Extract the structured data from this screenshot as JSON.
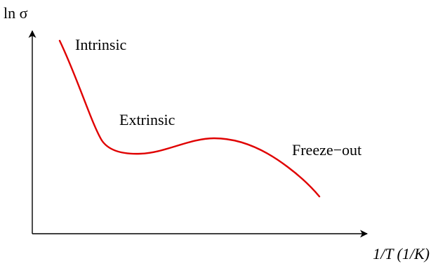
{
  "chart_data": {
    "type": "line",
    "ylabel": "ln σ",
    "xlabel": "1/T (1/K)",
    "grid": false,
    "axis_ticks": false,
    "colors": {
      "curve": "#e00000",
      "axes": "#000000",
      "text": "#000000"
    },
    "annotations": [
      {
        "name": "intrinsic",
        "text": "Intrinsic"
      },
      {
        "name": "extrinsic",
        "text": "Extrinsic"
      },
      {
        "name": "freeze-out",
        "text": "Freeze−out"
      }
    ],
    "series": [
      {
        "label": "ln σ vs 1/T"
      }
    ]
  }
}
